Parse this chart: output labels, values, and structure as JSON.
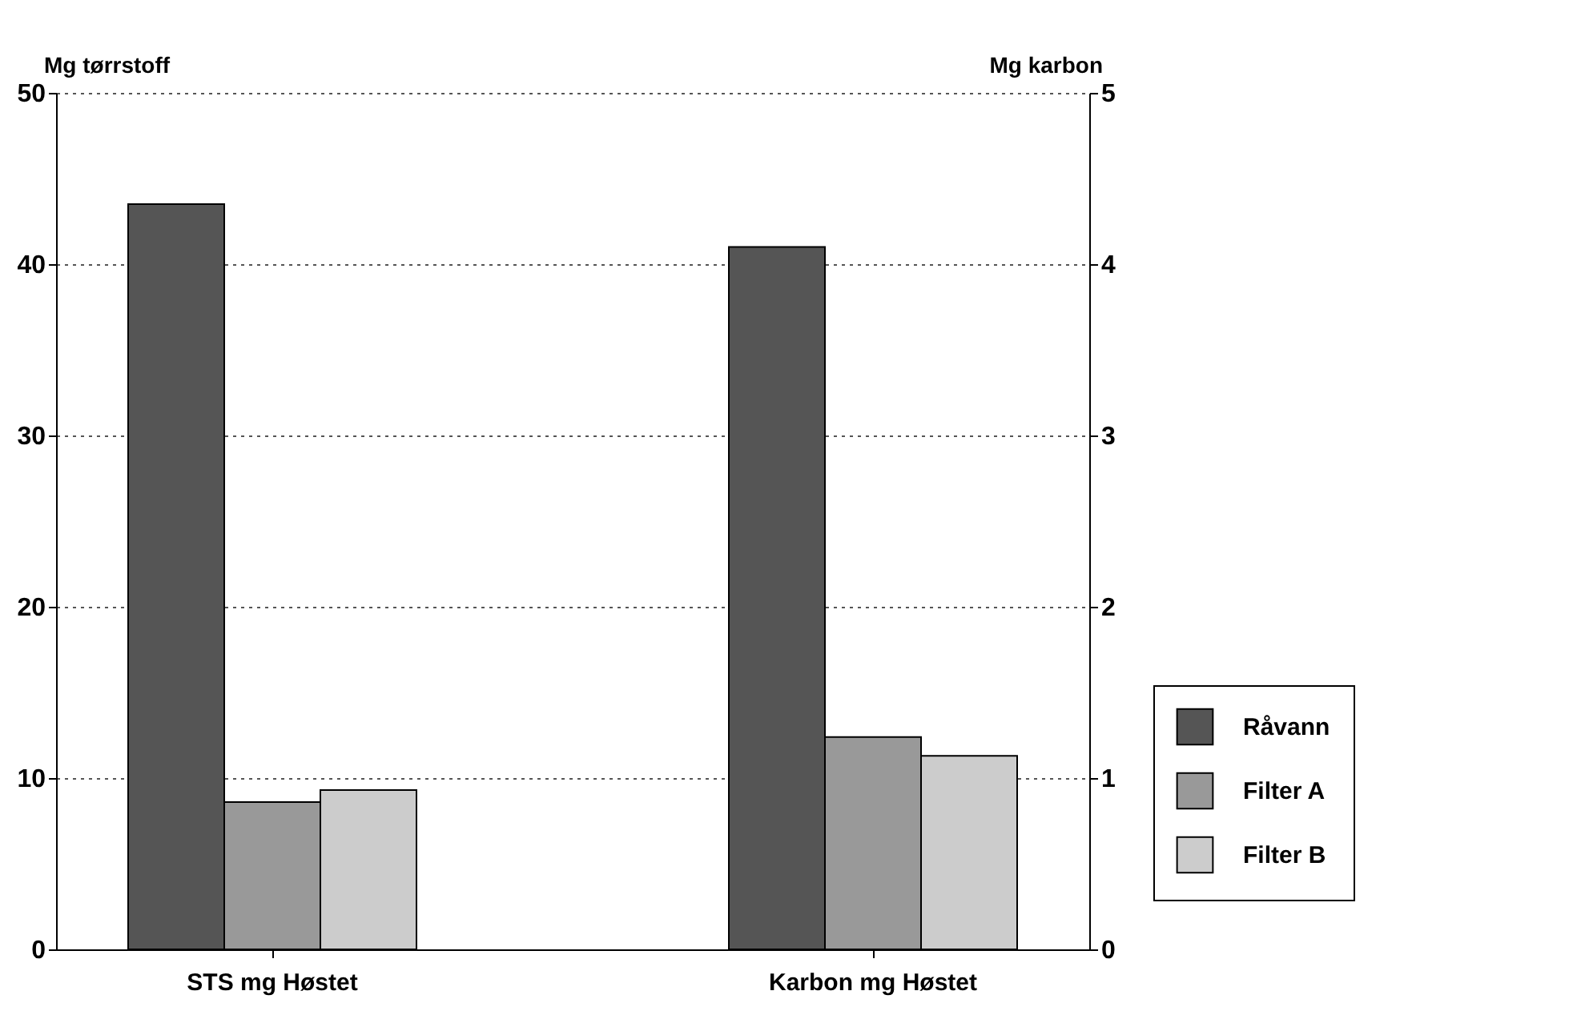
{
  "chart_data": {
    "type": "bar",
    "categories": [
      "STS mg Høstet",
      "Karbon mg Høstet"
    ],
    "ylabel": "Mg tørrstoff",
    "y2label": "Mg karbon",
    "ylim": [
      0,
      50
    ],
    "yticks": [
      0,
      10,
      20,
      30,
      40,
      50
    ],
    "y2lim": [
      0,
      5
    ],
    "y2ticks": [
      0,
      1,
      2,
      3,
      4,
      5
    ],
    "grid": "y",
    "legend": "right",
    "series": [
      {
        "name": "Råvann",
        "color": "#555555",
        "values": [
          43.5,
          null
        ]
      },
      {
        "name": "Filter A",
        "color": "#999999",
        "values": [
          8.6,
          null
        ]
      },
      {
        "name": "Filter B",
        "color": "#cccccc",
        "values": [
          9.3,
          null
        ]
      },
      {
        "color": "#555555",
        "values": [
          null,
          4.1
        ],
        "axis": "y2"
      },
      {
        "color": "#999999",
        "values": [
          null,
          1.24
        ],
        "axis": "y2"
      },
      {
        "color": "#cccccc",
        "values": [
          null,
          1.13
        ],
        "axis": "y2"
      }
    ]
  }
}
